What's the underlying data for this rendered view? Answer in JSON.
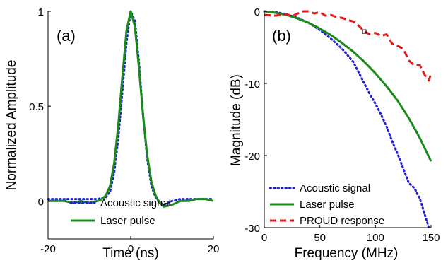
{
  "colors": {
    "acoustic": "#1f1fd6",
    "laser": "#1a8a1a",
    "proud": "#e31a1a",
    "axis": "#000000"
  },
  "chart_data": [
    {
      "type": "line",
      "panel_label": "(a)",
      "xlabel": "Time (ns)",
      "ylabel": "Normalized Amplitude",
      "xlim": [
        -20,
        20
      ],
      "ylim": [
        -0.2,
        1.0
      ],
      "xticks": [
        -20,
        0,
        20
      ],
      "xtick_labels": [
        "-20",
        "0",
        "20"
      ],
      "yticks": [
        0,
        0.5,
        1
      ],
      "ytick_labels": [
        "0",
        "0.5",
        "1"
      ],
      "grid": false,
      "legend_placement": "bottom-center",
      "series": [
        {
          "name": "Acoustic signal",
          "style": "dotted",
          "color_key": "acoustic",
          "x": [
            -20,
            -16,
            -12,
            -8,
            -6,
            -5,
            -4,
            -3,
            -2,
            -1,
            0,
            1,
            2,
            3,
            4,
            5,
            6,
            7,
            8,
            10,
            12,
            16,
            20
          ],
          "y": [
            0.01,
            0.01,
            0.01,
            0.01,
            0.02,
            0.05,
            0.15,
            0.33,
            0.58,
            0.84,
            1.0,
            0.95,
            0.73,
            0.45,
            0.22,
            0.08,
            0.02,
            -0.01,
            -0.02,
            0.0,
            0.01,
            0.01,
            0.01
          ]
        },
        {
          "name": "Laser pulse",
          "style": "solid",
          "color_key": "laser",
          "x": [
            -20,
            -16,
            -14,
            -12,
            -10,
            -8,
            -7,
            -6,
            -5,
            -4,
            -3,
            -2,
            -1,
            0,
            1,
            2,
            3,
            4,
            5,
            6,
            7,
            8,
            10,
            12,
            14,
            16,
            18,
            20
          ],
          "y": [
            0.0,
            0.0,
            -0.01,
            0.0,
            -0.01,
            0.0,
            0.01,
            0.03,
            0.08,
            0.2,
            0.4,
            0.66,
            0.9,
            1.0,
            0.92,
            0.7,
            0.45,
            0.24,
            0.1,
            0.03,
            -0.01,
            -0.03,
            -0.02,
            0.0,
            0.0,
            0.01,
            0.01,
            0.0
          ]
        }
      ]
    },
    {
      "type": "line",
      "panel_label": "(b)",
      "xlabel": "Frequency (MHz)",
      "ylabel": "Magnitude (dB)",
      "xlim": [
        0,
        150
      ],
      "ylim": [
        -30,
        0
      ],
      "xticks": [
        0,
        50,
        100,
        150
      ],
      "xtick_labels": [
        "0",
        "50",
        "100",
        "150"
      ],
      "yticks": [
        0,
        -10,
        -20,
        -30
      ],
      "ytick_labels": [
        "0",
        "-10",
        "-20",
        "-30"
      ],
      "grid": false,
      "legend_placement": "bottom-left",
      "annotation_marker": {
        "x": 90,
        "y": -2.8
      },
      "series": [
        {
          "name": "Acoustic signal",
          "style": "dotted",
          "color_key": "acoustic",
          "x": [
            0,
            10,
            20,
            30,
            40,
            50,
            60,
            70,
            80,
            90,
            95,
            100,
            105,
            110,
            115,
            120,
            125,
            130,
            135,
            140,
            145,
            148
          ],
          "y": [
            0,
            -0.1,
            -0.4,
            -0.9,
            -1.6,
            -2.6,
            -3.8,
            -5.2,
            -7.0,
            -10.0,
            -11.5,
            -12.8,
            -14.3,
            -16.0,
            -18.0,
            -19.8,
            -21.8,
            -23.8,
            -24.5,
            -26.0,
            -28.5,
            -30.0
          ]
        },
        {
          "name": "Laser pulse",
          "style": "solid",
          "color_key": "laser",
          "x": [
            0,
            10,
            20,
            30,
            40,
            50,
            60,
            70,
            80,
            90,
            100,
            110,
            120,
            130,
            140,
            150
          ],
          "y": [
            0,
            -0.2,
            -0.5,
            -1.0,
            -1.6,
            -2.4,
            -3.3,
            -4.4,
            -5.6,
            -7.0,
            -8.6,
            -10.4,
            -12.4,
            -14.8,
            -17.6,
            -20.8
          ]
        },
        {
          "name": "PROUD response",
          "style": "dashed",
          "color_key": "proud",
          "x": [
            0,
            10,
            20,
            25,
            30,
            35,
            40,
            45,
            50,
            55,
            60,
            65,
            70,
            75,
            80,
            85,
            90,
            95,
            100,
            105,
            110,
            115,
            120,
            125,
            130,
            135,
            140,
            145,
            148,
            150
          ],
          "y": [
            -0.5,
            -0.6,
            -0.4,
            -0.7,
            -0.3,
            0.0,
            0.0,
            -0.3,
            -0.1,
            -0.6,
            -0.5,
            -0.8,
            -0.9,
            -1.2,
            -1.4,
            -2.0,
            -2.8,
            -3.2,
            -3.0,
            -3.4,
            -3.2,
            -4.5,
            -4.8,
            -5.2,
            -6.8,
            -7.5,
            -7.5,
            -9.0,
            -9.6,
            -8.6
          ]
        }
      ]
    }
  ]
}
